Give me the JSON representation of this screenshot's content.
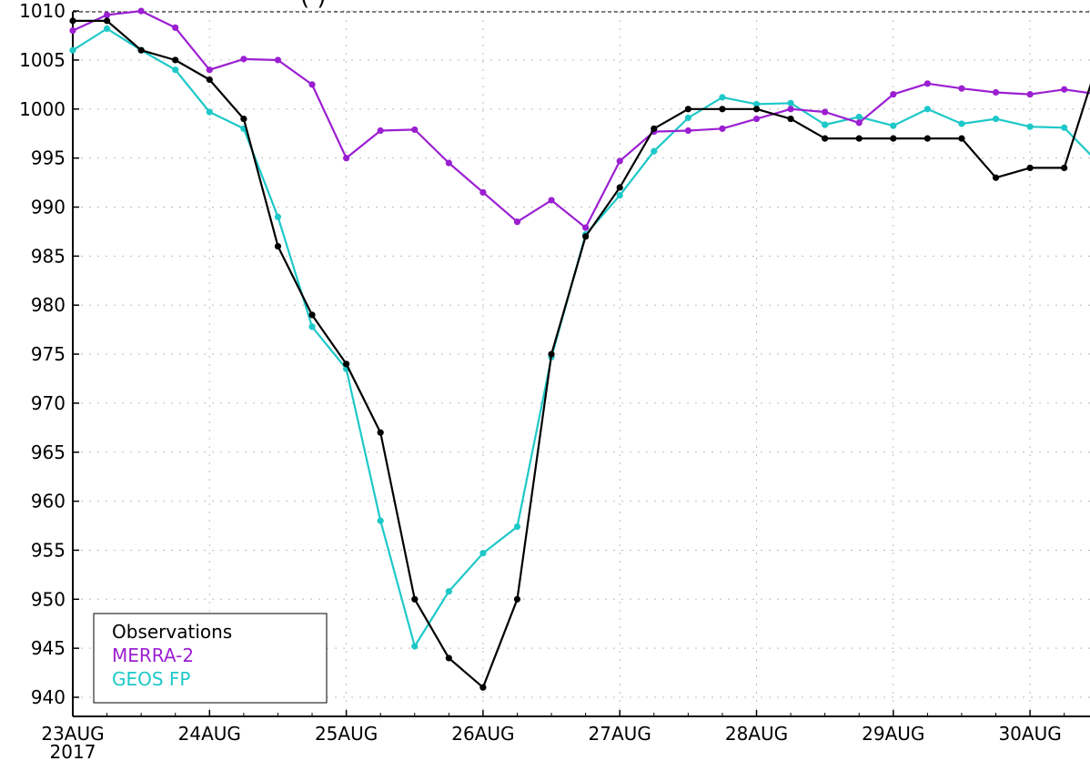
{
  "title_fragment": "(                                    )",
  "chart_data": {
    "type": "line",
    "xlim": [
      0,
      7.5
    ],
    "ylim": [
      938,
      1010
    ],
    "grid": true,
    "legend_placement": "bottom-left",
    "x_tick_values": [
      0,
      1,
      2,
      3,
      4,
      5,
      6,
      7
    ],
    "x_tick_labels": [
      "23AUG",
      "24AUG",
      "25AUG",
      "26AUG",
      "27AUG",
      "28AUG",
      "29AUG",
      "30AUG"
    ],
    "x_year_label": "2017",
    "y_ticks": [
      940,
      945,
      950,
      955,
      960,
      965,
      970,
      975,
      980,
      985,
      990,
      995,
      1000,
      1005,
      1010
    ],
    "series": [
      {
        "name": "Observations",
        "color": "#000000",
        "x": [
          0,
          0.25,
          0.5,
          0.75,
          1,
          1.25,
          1.5,
          1.75,
          2,
          2.25,
          2.5,
          2.75,
          3,
          3.25,
          3.5,
          3.75,
          4,
          4.25,
          4.5,
          4.75,
          5,
          5.25,
          5.5,
          5.75,
          6,
          6.25,
          6.5,
          6.75,
          7,
          7.25,
          7.5
        ],
        "y": [
          1009,
          1009,
          1006,
          1005,
          1003,
          999,
          986,
          979,
          974,
          967,
          950,
          944,
          941,
          950,
          975,
          987,
          992,
          998,
          1000,
          1000,
          1000,
          999,
          997,
          997,
          997,
          997,
          997,
          993,
          994,
          994,
          1005
        ]
      },
      {
        "name": "MERRA-2",
        "color": "#9b1fd1",
        "x": [
          0,
          0.25,
          0.5,
          0.75,
          1,
          1.25,
          1.5,
          1.75,
          2,
          2.25,
          2.5,
          2.75,
          3,
          3.25,
          3.5,
          3.75,
          4,
          4.25,
          4.5,
          4.75,
          5,
          5.25,
          5.5,
          5.75,
          6,
          6.25,
          6.5,
          6.75,
          7,
          7.25,
          7.5
        ],
        "y": [
          1008,
          1009.6,
          1010,
          1008.3,
          1004,
          1005.1,
          1005,
          1002.5,
          995,
          997.8,
          997.9,
          994.5,
          991.5,
          988.5,
          990.7,
          987.9,
          994.7,
          997.7,
          997.8,
          998,
          999,
          1000,
          999.7,
          998.6,
          1001.5,
          1002.6,
          1002.1,
          1001.7,
          1001.5,
          1002,
          1001.5
        ]
      },
      {
        "name": "GEOS FP",
        "color": "#1ec8c8",
        "x": [
          0,
          0.25,
          0.5,
          0.75,
          1,
          1.25,
          1.5,
          1.75,
          2,
          2.25,
          2.5,
          2.75,
          3,
          3.25,
          3.5,
          3.75,
          4,
          4.25,
          4.5,
          4.75,
          5,
          5.25,
          5.5,
          5.75,
          6,
          6.25,
          6.5,
          6.75,
          7,
          7.25,
          7.5
        ],
        "y": [
          1006,
          1008.2,
          1006,
          1004,
          999.7,
          998,
          989,
          977.8,
          973.5,
          958,
          945.2,
          950.8,
          954.7,
          957.4,
          974.7,
          987.2,
          991.2,
          995.7,
          999.1,
          1001.2,
          1000.5,
          1000.6,
          998.4,
          999.2,
          998.3,
          1000,
          998.5,
          999,
          998.2,
          998.1,
          994.5
        ]
      }
    ]
  }
}
